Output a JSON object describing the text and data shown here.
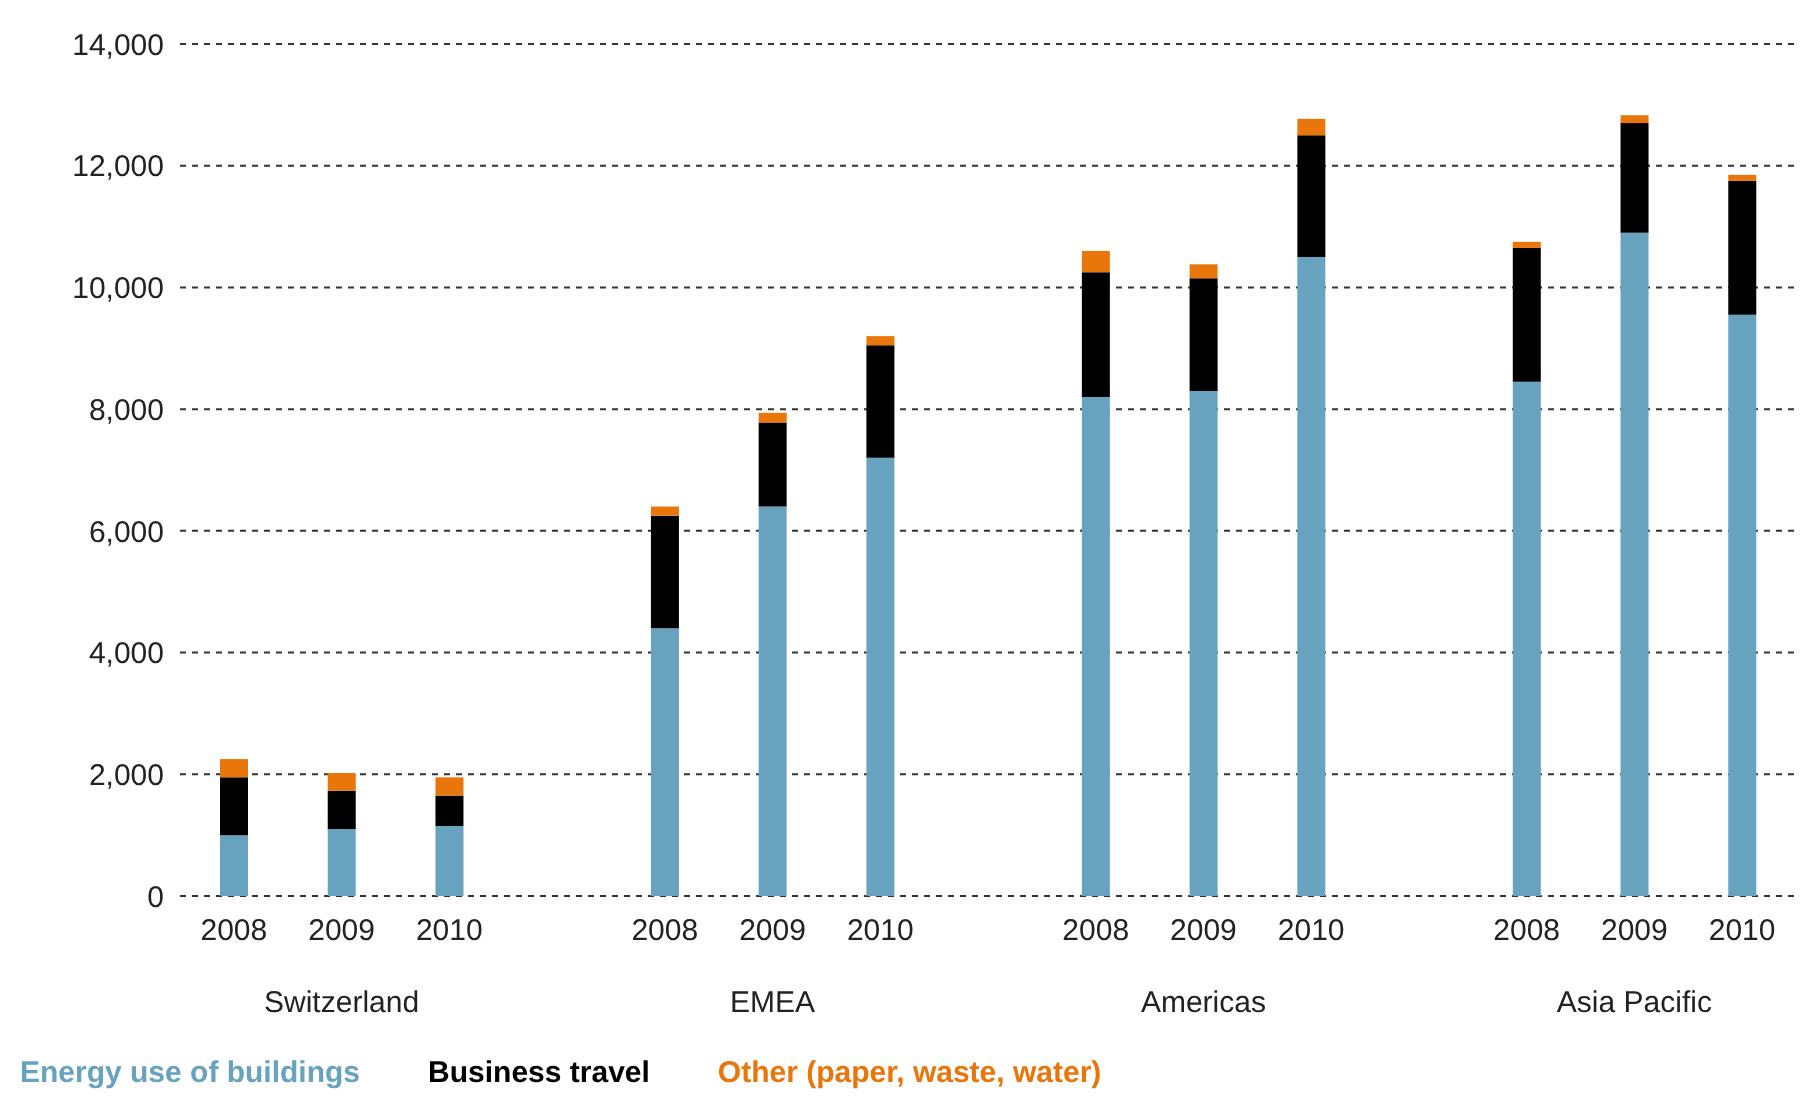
{
  "chart_data": {
    "type": "bar",
    "stacked": true,
    "categories": [
      "2008",
      "2009",
      "2010",
      null,
      "2008",
      "2009",
      "2010",
      null,
      "2008",
      "2009",
      "2010",
      null,
      "2008",
      "2009",
      "2010"
    ],
    "series": [
      {
        "name": "Energy use of buildings",
        "color": "#67a3bf",
        "values": [
          1000,
          1100,
          1150,
          null,
          4400,
          6400,
          7200,
          null,
          8200,
          8300,
          10500,
          null,
          8450,
          10900,
          9550
        ]
      },
      {
        "name": "Business travel",
        "color": "#000000",
        "values": [
          950,
          630,
          500,
          null,
          1850,
          1380,
          1850,
          null,
          2050,
          1850,
          2000,
          null,
          2200,
          1800,
          2200
        ]
      },
      {
        "name": "Other (paper, waste, water)",
        "color": "#e8760a",
        "values": [
          300,
          290,
          300,
          null,
          150,
          160,
          150,
          null,
          350,
          230,
          270,
          null,
          100,
          130,
          100
        ]
      }
    ],
    "ylim": [
      0,
      14000
    ],
    "yticks": [
      0,
      {
        "value": 2000,
        "label": "2,000"
      },
      {
        "value": 4000,
        "label": "4,000"
      },
      {
        "value": 6000,
        "label": "6,000"
      },
      {
        "value": 8000,
        "label": "8,000"
      },
      {
        "value": 10000,
        "label": "10,000"
      },
      {
        "value": 12000,
        "label": "12,000"
      },
      {
        "value": 14000,
        "label": "14,000"
      }
    ],
    "grid": "y",
    "legend": "bottom left",
    "annotations": [
      "Switzerland",
      "EMEA",
      "Americas",
      "Asia Pacific"
    ]
  }
}
